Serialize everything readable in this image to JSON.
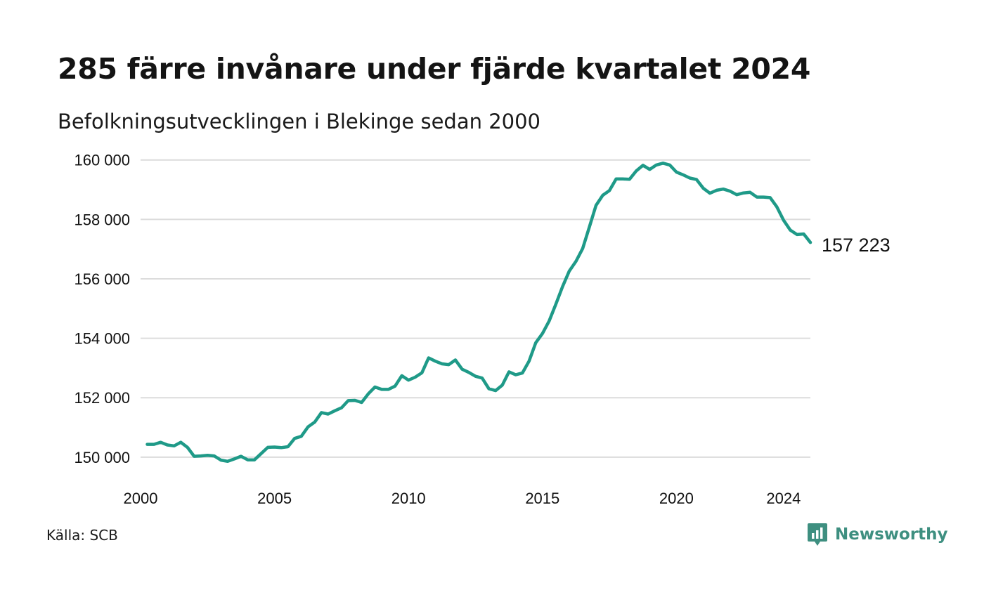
{
  "title": "285 färre invånare under fjärde kvartalet 2024",
  "subtitle": "Befolkningsutvecklingen i Blekinge sedan 2000",
  "source": "Källa: SCB",
  "brand": {
    "name": "Newsworthy",
    "icon": "newsworthy-logo-icon",
    "color": "#3e8f80"
  },
  "chart_data": {
    "type": "line",
    "title": "285 färre invånare under fjärde kvartalet 2024",
    "subtitle": "Befolkningsutvecklingen i Blekinge sedan 2000",
    "xlabel": "",
    "ylabel": "",
    "xlim": [
      2000.0,
      2025.0
    ],
    "ylim": [
      149500,
      160300
    ],
    "grid": true,
    "line_color": "#1f9a88",
    "x_ticks": [
      2000,
      2005,
      2010,
      2015,
      2020,
      2024
    ],
    "x_tick_labels": [
      "2000",
      "2005",
      "2010",
      "2015",
      "2020",
      "2024"
    ],
    "y_ticks": [
      150000,
      152000,
      154000,
      156000,
      158000,
      160000
    ],
    "y_tick_labels": [
      "150 000",
      "152 000",
      "154 000",
      "156 000",
      "158 000",
      "160 000"
    ],
    "end_label": "157 223",
    "series": [
      {
        "x": [
          2000.25,
          2000.5,
          2000.75,
          2001.0,
          2001.25,
          2001.5,
          2001.75,
          2002.0,
          2002.25,
          2002.5,
          2002.75,
          2003.0,
          2003.25,
          2003.5,
          2003.75,
          2004.0,
          2004.25,
          2004.5,
          2004.75,
          2005.0,
          2005.25,
          2005.5,
          2005.75,
          2006.0,
          2006.25,
          2006.5,
          2006.75,
          2007.0,
          2007.25,
          2007.5,
          2007.75,
          2008.0,
          2008.25,
          2008.5,
          2008.75,
          2009.0,
          2009.25,
          2009.5,
          2009.75,
          2010.0,
          2010.25,
          2010.5,
          2010.75,
          2011.0,
          2011.25,
          2011.5,
          2011.75,
          2012.0,
          2012.25,
          2012.5,
          2012.75,
          2013.0,
          2013.25,
          2013.5,
          2013.75,
          2014.0,
          2014.25,
          2014.5,
          2014.75,
          2015.0,
          2015.25,
          2015.5,
          2015.75,
          2016.0,
          2016.25,
          2016.5,
          2016.75,
          2017.0,
          2017.25,
          2017.5,
          2017.75,
          2018.0,
          2018.25,
          2018.5,
          2018.75,
          2019.0,
          2019.25,
          2019.5,
          2019.75,
          2020.0,
          2020.25,
          2020.5,
          2020.75,
          2021.0,
          2021.25,
          2021.5,
          2021.75,
          2022.0,
          2022.25,
          2022.5,
          2022.75,
          2023.0,
          2023.25,
          2023.5,
          2023.75,
          2024.0,
          2024.25,
          2024.5,
          2024.75,
          2025.0
        ],
        "y": [
          150430,
          150430,
          150500,
          150410,
          150380,
          150500,
          150330,
          150030,
          150040,
          150060,
          150040,
          149900,
          149860,
          149940,
          150030,
          149910,
          149910,
          150120,
          150330,
          150340,
          150320,
          150350,
          150630,
          150700,
          151020,
          151180,
          151500,
          151450,
          151560,
          151660,
          151900,
          151910,
          151840,
          152130,
          152360,
          152280,
          152280,
          152390,
          152740,
          152590,
          152690,
          152840,
          153340,
          153230,
          153140,
          153110,
          153270,
          152960,
          152850,
          152720,
          152660,
          152300,
          152240,
          152420,
          152870,
          152770,
          152830,
          153230,
          153850,
          154160,
          154580,
          155150,
          155740,
          156260,
          156590,
          157020,
          157740,
          158470,
          158810,
          158970,
          159360,
          159360,
          159350,
          159630,
          159820,
          159680,
          159830,
          159890,
          159830,
          159590,
          159500,
          159390,
          159340,
          159050,
          158880,
          158980,
          159020,
          158950,
          158830,
          158890,
          158910,
          158750,
          158750,
          158730,
          158420,
          157970,
          157640,
          157490,
          157510,
          157223
        ]
      }
    ]
  }
}
